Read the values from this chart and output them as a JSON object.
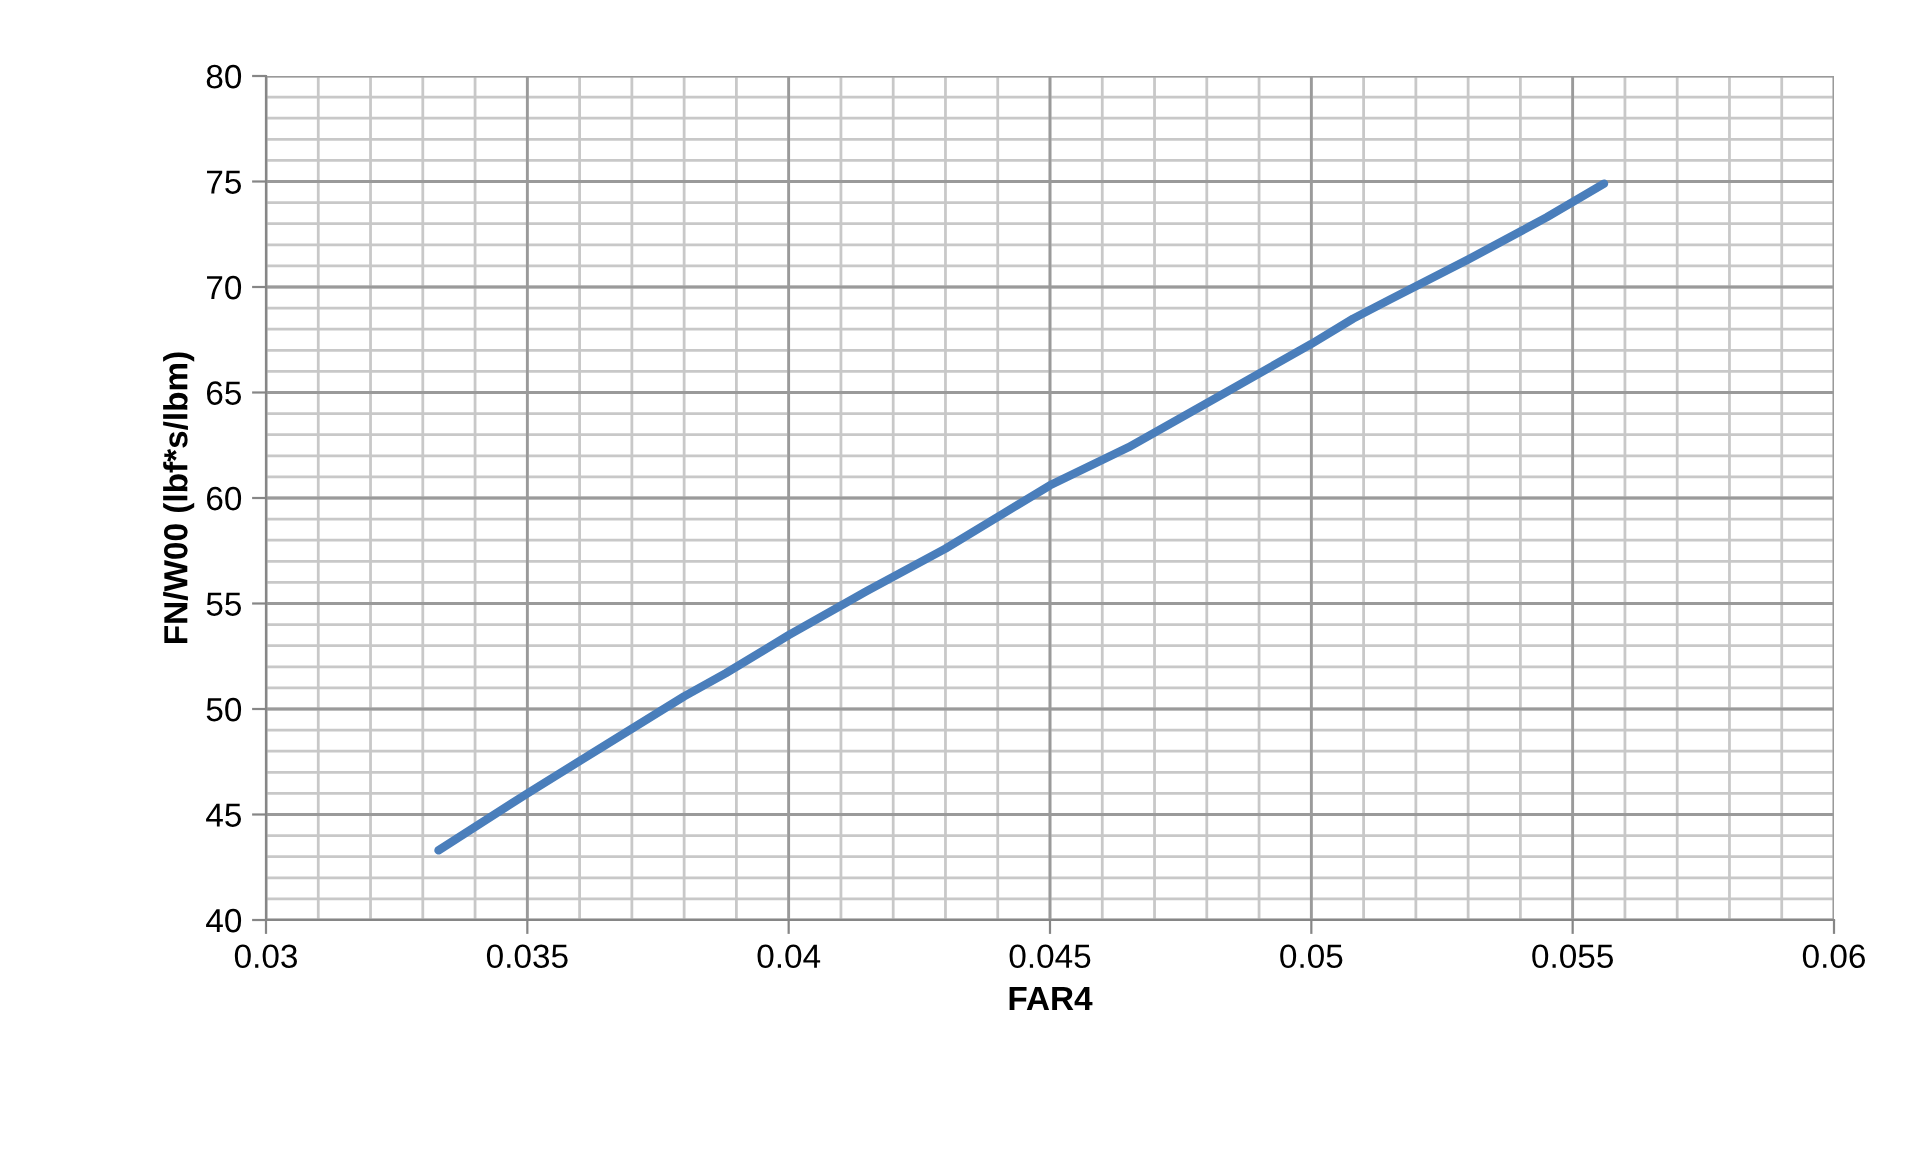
{
  "chart_data": {
    "type": "line",
    "xlabel": "FAR4",
    "ylabel": "FN/W00 (lbf*s/lbm)",
    "series": [
      {
        "color": "#4a7ebb",
        "x": [
          0.0333,
          0.035,
          0.0365,
          0.038,
          0.0388,
          0.04,
          0.0415,
          0.043,
          0.045,
          0.0465,
          0.048,
          0.0485,
          0.05,
          0.0508,
          0.0515,
          0.053,
          0.0545,
          0.0556
        ],
        "values": [
          43.3,
          46.0,
          48.3,
          50.6,
          51.7,
          53.5,
          55.6,
          57.6,
          60.6,
          62.4,
          64.5,
          65.2,
          67.3,
          68.5,
          69.4,
          71.3,
          73.3,
          74.9
        ]
      }
    ],
    "xlim": [
      0.03,
      0.06
    ],
    "xticks": [
      0.03,
      0.035,
      0.04,
      0.045,
      0.05,
      0.055,
      0.06
    ],
    "ylim": [
      40,
      80
    ],
    "yticks": [
      40,
      45,
      50,
      55,
      60,
      65,
      70,
      75,
      80
    ],
    "grid": true,
    "line_style": "solid",
    "marker": "none",
    "legend": false
  }
}
